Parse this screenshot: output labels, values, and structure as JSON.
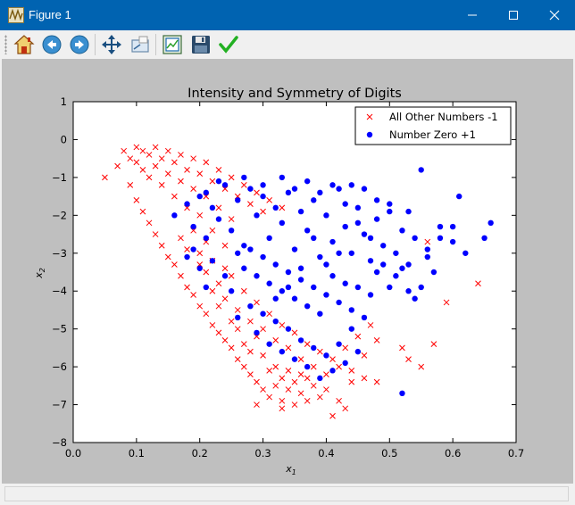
{
  "window": {
    "title": "Figure 1",
    "app_icon": "matplotlib-icon",
    "controls": [
      "minimize-icon",
      "maximize-icon",
      "close-icon"
    ],
    "titlebar_color": "#0063b1"
  },
  "toolbar": {
    "buttons": [
      {
        "name": "home-button",
        "icon": "home-icon"
      },
      {
        "name": "back-button",
        "icon": "back-arrow-icon"
      },
      {
        "name": "forward-button",
        "icon": "forward-arrow-icon"
      },
      {
        "name": "pan-button",
        "icon": "move-icon"
      },
      {
        "name": "zoom-button",
        "icon": "zoom-rect-icon"
      },
      {
        "name": "subplots-button",
        "icon": "configure-subplots-icon"
      },
      {
        "name": "save-button",
        "icon": "floppy-disk-icon"
      },
      {
        "name": "edit-axis-button",
        "icon": "checkmark-icon"
      }
    ]
  },
  "figure": {
    "background": "#bfbfbf"
  },
  "chart_data": {
    "type": "scatter",
    "title": "Intensity and Symmetry of Digits",
    "xlabel": "x1",
    "ylabel": "x2",
    "xlim": [
      0.0,
      0.7
    ],
    "ylim": [
      -8,
      1
    ],
    "xticks": [
      "0.0",
      "0.1",
      "0.2",
      "0.3",
      "0.4",
      "0.5",
      "0.6",
      "0.7"
    ],
    "yticks": [
      "1",
      "0",
      "−1",
      "−2",
      "−3",
      "−4",
      "−5",
      "−6",
      "−7",
      "−8"
    ],
    "grid": false,
    "legend_position": "top-right",
    "series": [
      {
        "name": "All Other Numbers -1",
        "marker": "x",
        "color": "#ff0000",
        "points": [
          [
            0.05,
            -1.0
          ],
          [
            0.07,
            -0.7
          ],
          [
            0.08,
            -0.3
          ],
          [
            0.09,
            -0.5
          ],
          [
            0.1,
            -0.2
          ],
          [
            0.1,
            -0.6
          ],
          [
            0.11,
            -0.3
          ],
          [
            0.11,
            -0.8
          ],
          [
            0.12,
            -0.4
          ],
          [
            0.12,
            -1.0
          ],
          [
            0.13,
            -0.2
          ],
          [
            0.13,
            -0.7
          ],
          [
            0.14,
            -0.5
          ],
          [
            0.14,
            -1.2
          ],
          [
            0.15,
            -0.3
          ],
          [
            0.15,
            -0.9
          ],
          [
            0.16,
            -0.6
          ],
          [
            0.16,
            -1.5
          ],
          [
            0.17,
            -0.4
          ],
          [
            0.17,
            -1.1
          ],
          [
            0.18,
            -0.8
          ],
          [
            0.18,
            -1.8
          ],
          [
            0.19,
            -0.5
          ],
          [
            0.19,
            -1.3
          ],
          [
            0.2,
            -0.9
          ],
          [
            0.2,
            -2.0
          ],
          [
            0.21,
            -0.6
          ],
          [
            0.21,
            -1.5
          ],
          [
            0.22,
            -1.1
          ],
          [
            0.22,
            -2.4
          ],
          [
            0.23,
            -0.8
          ],
          [
            0.23,
            -1.8
          ],
          [
            0.24,
            -1.3
          ],
          [
            0.24,
            -2.8
          ],
          [
            0.25,
            -1.0
          ],
          [
            0.25,
            -2.1
          ],
          [
            0.26,
            -1.5
          ],
          [
            0.27,
            -1.2
          ],
          [
            0.28,
            -1.7
          ],
          [
            0.29,
            -1.4
          ],
          [
            0.3,
            -1.9
          ],
          [
            0.31,
            -1.6
          ],
          [
            0.33,
            -1.8
          ],
          [
            0.09,
            -1.2
          ],
          [
            0.1,
            -1.6
          ],
          [
            0.11,
            -1.9
          ],
          [
            0.12,
            -2.2
          ],
          [
            0.13,
            -2.5
          ],
          [
            0.14,
            -2.8
          ],
          [
            0.15,
            -3.1
          ],
          [
            0.16,
            -3.3
          ],
          [
            0.17,
            -3.6
          ],
          [
            0.18,
            -3.9
          ],
          [
            0.19,
            -4.1
          ],
          [
            0.2,
            -4.4
          ],
          [
            0.21,
            -4.6
          ],
          [
            0.22,
            -4.9
          ],
          [
            0.23,
            -5.1
          ],
          [
            0.24,
            -5.3
          ],
          [
            0.25,
            -5.5
          ],
          [
            0.26,
            -5.8
          ],
          [
            0.27,
            -6.0
          ],
          [
            0.28,
            -6.2
          ],
          [
            0.29,
            -6.4
          ],
          [
            0.3,
            -6.6
          ],
          [
            0.31,
            -6.8
          ],
          [
            0.32,
            -6.5
          ],
          [
            0.33,
            -6.9
          ],
          [
            0.34,
            -6.6
          ],
          [
            0.35,
            -7.0
          ],
          [
            0.36,
            -6.7
          ],
          [
            0.37,
            -6.9
          ],
          [
            0.38,
            -6.5
          ],
          [
            0.39,
            -6.8
          ],
          [
            0.4,
            -6.6
          ],
          [
            0.42,
            -6.9
          ],
          [
            0.44,
            -6.4
          ],
          [
            0.46,
            -6.3
          ],
          [
            0.41,
            -7.3
          ],
          [
            0.43,
            -7.1
          ],
          [
            0.29,
            -7.0
          ],
          [
            0.33,
            -7.1
          ],
          [
            0.48,
            -6.4
          ],
          [
            0.52,
            -5.5
          ],
          [
            0.53,
            -5.8
          ],
          [
            0.55,
            -6.0
          ],
          [
            0.57,
            -5.4
          ],
          [
            0.59,
            -4.3
          ],
          [
            0.64,
            -3.8
          ],
          [
            0.56,
            -2.7
          ],
          [
            0.2,
            -3.0
          ],
          [
            0.21,
            -3.5
          ],
          [
            0.22,
            -3.2
          ],
          [
            0.23,
            -3.8
          ],
          [
            0.24,
            -4.2
          ],
          [
            0.25,
            -3.6
          ],
          [
            0.26,
            -4.5
          ],
          [
            0.27,
            -4.0
          ],
          [
            0.28,
            -4.8
          ],
          [
            0.29,
            -4.3
          ],
          [
            0.3,
            -5.0
          ],
          [
            0.31,
            -4.6
          ],
          [
            0.32,
            -5.3
          ],
          [
            0.33,
            -4.9
          ],
          [
            0.34,
            -5.5
          ],
          [
            0.35,
            -5.1
          ],
          [
            0.36,
            -5.8
          ],
          [
            0.37,
            -5.4
          ],
          [
            0.38,
            -6.0
          ],
          [
            0.39,
            -5.6
          ],
          [
            0.4,
            -6.2
          ],
          [
            0.41,
            -5.8
          ],
          [
            0.42,
            -6.0
          ],
          [
            0.43,
            -5.5
          ],
          [
            0.44,
            -6.1
          ],
          [
            0.45,
            -5.2
          ],
          [
            0.46,
            -5.7
          ],
          [
            0.47,
            -4.9
          ],
          [
            0.48,
            -5.3
          ],
          [
            0.17,
            -2.6
          ],
          [
            0.18,
            -2.9
          ],
          [
            0.19,
            -2.4
          ],
          [
            0.2,
            -3.3
          ],
          [
            0.21,
            -2.7
          ],
          [
            0.22,
            -4.0
          ],
          [
            0.23,
            -4.4
          ],
          [
            0.24,
            -3.4
          ],
          [
            0.25,
            -4.8
          ],
          [
            0.26,
            -5.0
          ],
          [
            0.27,
            -5.4
          ],
          [
            0.28,
            -5.6
          ],
          [
            0.29,
            -5.2
          ],
          [
            0.3,
            -5.7
          ],
          [
            0.31,
            -6.1
          ],
          [
            0.32,
            -6.0
          ],
          [
            0.33,
            -6.3
          ],
          [
            0.34,
            -6.1
          ],
          [
            0.35,
            -6.4
          ],
          [
            0.36,
            -6.2
          ],
          [
            0.37,
            -6.3
          ]
        ]
      },
      {
        "name": "Number Zero +1",
        "marker": "o",
        "color": "#0000ff",
        "points": [
          [
            0.16,
            -2.0
          ],
          [
            0.18,
            -1.7
          ],
          [
            0.19,
            -2.3
          ],
          [
            0.2,
            -1.5
          ],
          [
            0.21,
            -2.6
          ],
          [
            0.22,
            -1.8
          ],
          [
            0.23,
            -2.1
          ],
          [
            0.24,
            -1.2
          ],
          [
            0.25,
            -2.4
          ],
          [
            0.26,
            -1.6
          ],
          [
            0.27,
            -2.8
          ],
          [
            0.28,
            -1.3
          ],
          [
            0.29,
            -2.0
          ],
          [
            0.3,
            -1.5
          ],
          [
            0.31,
            -2.6
          ],
          [
            0.32,
            -1.8
          ],
          [
            0.33,
            -2.2
          ],
          [
            0.34,
            -1.4
          ],
          [
            0.35,
            -2.9
          ],
          [
            0.36,
            -1.9
          ],
          [
            0.37,
            -2.4
          ],
          [
            0.38,
            -1.6
          ],
          [
            0.39,
            -3.1
          ],
          [
            0.4,
            -2.0
          ],
          [
            0.41,
            -2.7
          ],
          [
            0.42,
            -1.3
          ],
          [
            0.43,
            -2.3
          ],
          [
            0.44,
            -3.0
          ],
          [
            0.45,
            -1.8
          ],
          [
            0.46,
            -2.5
          ],
          [
            0.47,
            -3.2
          ],
          [
            0.48,
            -2.1
          ],
          [
            0.49,
            -2.8
          ],
          [
            0.5,
            -1.9
          ],
          [
            0.51,
            -3.0
          ],
          [
            0.52,
            -2.4
          ],
          [
            0.53,
            -3.3
          ],
          [
            0.54,
            -2.6
          ],
          [
            0.55,
            -0.8
          ],
          [
            0.56,
            -2.9
          ],
          [
            0.58,
            -2.3
          ],
          [
            0.6,
            -2.7
          ],
          [
            0.61,
            -1.5
          ],
          [
            0.65,
            -2.6
          ],
          [
            0.66,
            -2.2
          ],
          [
            0.62,
            -3.0
          ],
          [
            0.57,
            -3.5
          ],
          [
            0.26,
            -3.0
          ],
          [
            0.27,
            -3.4
          ],
          [
            0.28,
            -2.9
          ],
          [
            0.29,
            -3.6
          ],
          [
            0.3,
            -3.1
          ],
          [
            0.31,
            -3.8
          ],
          [
            0.32,
            -3.3
          ],
          [
            0.33,
            -4.0
          ],
          [
            0.34,
            -3.5
          ],
          [
            0.35,
            -4.2
          ],
          [
            0.36,
            -3.7
          ],
          [
            0.37,
            -4.4
          ],
          [
            0.38,
            -3.9
          ],
          [
            0.39,
            -4.6
          ],
          [
            0.4,
            -4.1
          ],
          [
            0.41,
            -3.6
          ],
          [
            0.42,
            -4.3
          ],
          [
            0.43,
            -3.8
          ],
          [
            0.44,
            -4.5
          ],
          [
            0.45,
            -3.9
          ],
          [
            0.46,
            -4.7
          ],
          [
            0.47,
            -4.1
          ],
          [
            0.48,
            -3.5
          ],
          [
            0.5,
            -3.9
          ],
          [
            0.52,
            -3.4
          ],
          [
            0.54,
            -4.2
          ],
          [
            0.24,
            -3.6
          ],
          [
            0.25,
            -4.0
          ],
          [
            0.22,
            -3.2
          ],
          [
            0.21,
            -3.9
          ],
          [
            0.2,
            -3.4
          ],
          [
            0.19,
            -2.9
          ],
          [
            0.18,
            -3.1
          ],
          [
            0.28,
            -4.4
          ],
          [
            0.3,
            -4.6
          ],
          [
            0.32,
            -4.8
          ],
          [
            0.34,
            -5.0
          ],
          [
            0.36,
            -5.3
          ],
          [
            0.38,
            -5.5
          ],
          [
            0.4,
            -5.7
          ],
          [
            0.42,
            -5.4
          ],
          [
            0.44,
            -5.0
          ],
          [
            0.37,
            -6.0
          ],
          [
            0.39,
            -6.3
          ],
          [
            0.41,
            -6.1
          ],
          [
            0.43,
            -5.9
          ],
          [
            0.45,
            -5.6
          ],
          [
            0.52,
            -6.7
          ],
          [
            0.29,
            -5.1
          ],
          [
            0.31,
            -5.4
          ],
          [
            0.33,
            -5.6
          ],
          [
            0.35,
            -5.8
          ],
          [
            0.26,
            -4.7
          ],
          [
            0.35,
            -1.3
          ],
          [
            0.37,
            -1.1
          ],
          [
            0.39,
            -1.4
          ],
          [
            0.41,
            -1.2
          ],
          [
            0.44,
            -1.2
          ],
          [
            0.46,
            -1.3
          ],
          [
            0.48,
            -1.6
          ],
          [
            0.5,
            -1.7
          ],
          [
            0.53,
            -1.9
          ],
          [
            0.27,
            -1.0
          ],
          [
            0.23,
            -1.1
          ],
          [
            0.21,
            -1.4
          ],
          [
            0.33,
            -1.0
          ],
          [
            0.3,
            -1.2
          ],
          [
            0.43,
            -1.7
          ],
          [
            0.45,
            -2.2
          ],
          [
            0.47,
            -2.6
          ],
          [
            0.49,
            -3.3
          ],
          [
            0.51,
            -3.6
          ],
          [
            0.53,
            -4.0
          ],
          [
            0.55,
            -3.9
          ],
          [
            0.56,
            -3.1
          ],
          [
            0.58,
            -2.6
          ],
          [
            0.6,
            -2.3
          ],
          [
            0.38,
            -2.6
          ],
          [
            0.36,
            -3.4
          ],
          [
            0.34,
            -3.9
          ],
          [
            0.32,
            -4.2
          ],
          [
            0.4,
            -3.3
          ],
          [
            0.42,
            -3.0
          ]
        ]
      }
    ]
  }
}
